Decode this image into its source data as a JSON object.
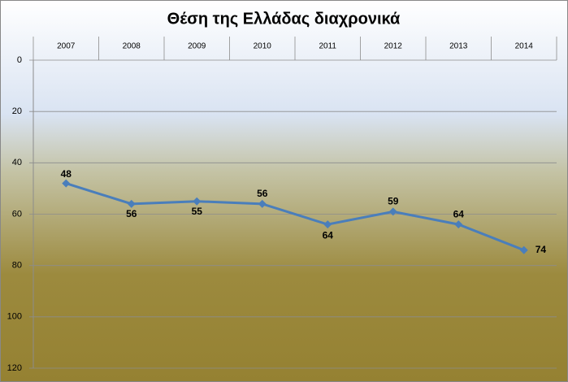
{
  "chart_data": {
    "type": "line",
    "title": "Θέση της Ελλάδας διαχρονικά",
    "categories": [
      "2007",
      "2008",
      "2009",
      "2010",
      "2011",
      "2012",
      "2013",
      "2014"
    ],
    "series": [
      {
        "name": "Θέση",
        "color": "#4a7ebb",
        "values": [
          48,
          56,
          55,
          56,
          64,
          59,
          64,
          74
        ]
      }
    ],
    "ylim": [
      0,
      120
    ],
    "yticks": [
      0,
      20,
      40,
      60,
      80,
      100,
      120
    ],
    "y_inverted": true,
    "grid": true
  }
}
